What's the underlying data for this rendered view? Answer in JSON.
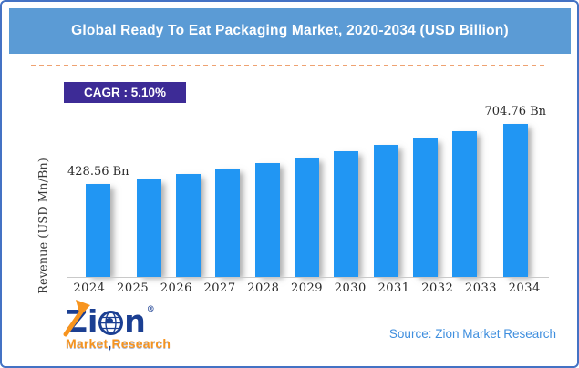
{
  "window": {
    "title": "Global Ready To Eat Packaging Market, 2020-2034 (USD Billion)"
  },
  "cagr_badge": {
    "label": "CAGR : 5.10%"
  },
  "chart_data": {
    "type": "bar",
    "title": "Global Ready To Eat Packaging Market, 2020-2034 (USD Billion)",
    "xlabel": "",
    "ylabel": "Revenue (USD Mn/Bn)",
    "categories": [
      "2024",
      "2025",
      "2026",
      "2027",
      "2028",
      "2029",
      "2030",
      "2031",
      "2032",
      "2033",
      "2034"
    ],
    "values": [
      428.56,
      450.42,
      473.39,
      497.53,
      522.9,
      549.57,
      577.6,
      607.06,
      638.02,
      670.56,
      704.76
    ],
    "point_labels": [
      "428.56 Bn",
      "",
      "",
      "",
      "",
      "",
      "",
      "",
      "",
      "",
      "704.76 Bn"
    ],
    "cagr": "5.10%",
    "ylim": [
      0,
      740
    ],
    "grid": false,
    "legend": false,
    "bar_color": "#2196F3"
  },
  "footer": {
    "source": "Source: Zion Market Research",
    "logo": {
      "z": "Z",
      "i": "i",
      "n": "n",
      "registered": "®",
      "market": "Market",
      "comma": ",",
      "research": "Research"
    }
  },
  "colors": {
    "frame_border": "#4472C4",
    "banner_bg": "#5B9BD5",
    "banner_text": "#FFFFFF",
    "dash": "#EFA271",
    "badge_bg": "#3D2B96",
    "badge_text": "#FFFFFF",
    "bar": "#2196F3",
    "axis_line": "#C9C9C9",
    "chart_text": "#2A2A2A",
    "source_text": "#3E8EDE",
    "logo_blue": "#1B3F92",
    "logo_orange": "#F7941E"
  }
}
